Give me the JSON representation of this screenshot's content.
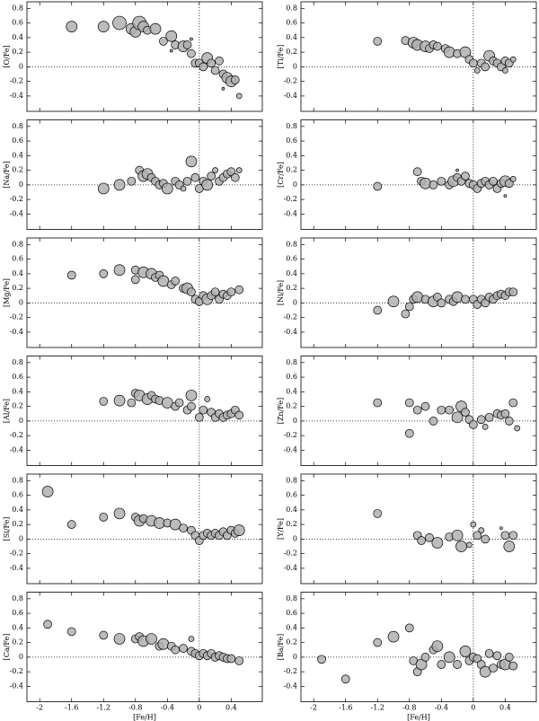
{
  "chart_data": [
    {
      "type": "scatter",
      "ylabel": "[O/Fe]",
      "x": [
        -1.6,
        -1.2,
        -1.0,
        -0.85,
        -0.8,
        -0.75,
        -0.7,
        -0.65,
        -0.55,
        -0.45,
        -0.35,
        -0.3,
        -0.2,
        -0.15,
        -0.1,
        -0.05,
        0,
        0.05,
        0.1,
        0.15,
        0.2,
        0.25,
        0.3,
        0.35,
        0.4,
        0.45,
        0.5,
        -0.1,
        -0.35,
        0.3
      ],
      "values": [
        0.55,
        0.55,
        0.6,
        0.52,
        0.48,
        0.6,
        0.55,
        0.5,
        0.52,
        0.35,
        0.42,
        0.3,
        0.28,
        0.3,
        0.18,
        0.05,
        0.05,
        0,
        0.12,
        0.05,
        -0.05,
        0.08,
        -0.1,
        -0.15,
        -0.2,
        -0.18,
        -0.4,
        0.38,
        0.22,
        -0.3
      ],
      "sizes": [
        4,
        4,
        5,
        4,
        4,
        5,
        4,
        3,
        4,
        3,
        4,
        3,
        4,
        3,
        3,
        3,
        3,
        3,
        4,
        3,
        3,
        3,
        3,
        4,
        4,
        3,
        2,
        1,
        1,
        1
      ],
      "xlim": [
        -2.16,
        0.79
      ],
      "ylim": [
        -0.61,
        0.89
      ],
      "xticks": [
        -2,
        -1.6,
        -1.2,
        -0.8,
        -0.4,
        0,
        0.4
      ],
      "yticks": [
        -0.4,
        -0.2,
        0,
        0.2,
        0.4,
        0.6,
        0.8
      ]
    },
    {
      "type": "scatter",
      "ylabel": "[Ti/Fe]",
      "x": [
        -1.2,
        -0.85,
        -0.75,
        -0.7,
        -0.6,
        -0.55,
        -0.5,
        -0.45,
        -0.35,
        -0.3,
        -0.2,
        -0.1,
        -0.05,
        0,
        0.05,
        0.1,
        0.15,
        0.2,
        0.25,
        0.3,
        0.35,
        0.4,
        0.45,
        0.5,
        0.4
      ],
      "values": [
        0.35,
        0.36,
        0.33,
        0.3,
        0.28,
        0.25,
        0.3,
        0.28,
        0.25,
        0.2,
        0.18,
        0.2,
        0.1,
        0.05,
        -0.05,
        0.05,
        0,
        0.15,
        0.08,
        0.05,
        0,
        0.08,
        0.05,
        0.1,
        -0.05
      ],
      "sizes": [
        3,
        3,
        4,
        4,
        4,
        3,
        3,
        3,
        3,
        4,
        3,
        4,
        3,
        3,
        2,
        3,
        3,
        4,
        3,
        3,
        3,
        3,
        3,
        2,
        2
      ],
      "xlim": [
        -2.16,
        0.79
      ],
      "ylim": [
        -0.61,
        0.89
      ],
      "xticks": [
        -2,
        -1.6,
        -1.2,
        -0.8,
        -0.4,
        0,
        0.4
      ],
      "yticks": [
        -0.4,
        -0.2,
        0,
        0.2,
        0.4,
        0.6,
        0.8
      ]
    },
    {
      "type": "scatter",
      "ylabel": "[Na/Fe]",
      "x": [
        -1.2,
        -1.0,
        -0.85,
        -0.75,
        -0.7,
        -0.65,
        -0.6,
        -0.55,
        -0.5,
        -0.45,
        -0.4,
        -0.3,
        -0.25,
        -0.15,
        -0.1,
        -0.05,
        0,
        0.05,
        0.1,
        0.15,
        0.2,
        0.25,
        0.3,
        0.35,
        0.4,
        0.45,
        0.5,
        -0.2
      ],
      "values": [
        -0.05,
        0,
        0.05,
        0.2,
        0.12,
        0.15,
        0.1,
        0.05,
        0,
        0.02,
        -0.05,
        0.05,
        0,
        0.05,
        0.32,
        0.1,
        -0.05,
        0.05,
        0,
        0.12,
        0.2,
        0.05,
        0.1,
        0.15,
        0.18,
        0.1,
        0.2,
        -0.05
      ],
      "sizes": [
        4,
        4,
        3,
        3,
        4,
        4,
        3,
        3,
        3,
        3,
        4,
        3,
        3,
        3,
        4,
        3,
        3,
        3,
        4,
        3,
        2,
        3,
        3,
        3,
        3,
        3,
        2,
        2
      ],
      "xlim": [
        -2.16,
        0.79
      ],
      "ylim": [
        -0.61,
        0.89
      ],
      "xticks": [
        -2,
        -1.6,
        -1.2,
        -0.8,
        -0.4,
        0,
        0.4
      ],
      "yticks": [
        -0.4,
        -0.2,
        0,
        0.2,
        0.4,
        0.6,
        0.8
      ]
    },
    {
      "type": "scatter",
      "ylabel": "[Cr/Fe]",
      "x": [
        -1.2,
        -0.7,
        -0.65,
        -0.6,
        -0.5,
        -0.4,
        -0.3,
        -0.25,
        -0.2,
        -0.15,
        -0.1,
        -0.05,
        0,
        0.05,
        0.1,
        0.15,
        0.2,
        0.25,
        0.3,
        0.35,
        0.4,
        0.45,
        0.5,
        -0.2,
        0.4
      ],
      "values": [
        -0.02,
        0.18,
        0.05,
        0.02,
        0,
        0.05,
        0,
        0.05,
        0.1,
        0.05,
        0.12,
        0.02,
        0,
        -0.05,
        0.02,
        0.05,
        0,
        0.05,
        -0.05,
        0.02,
        0.05,
        0.02,
        0.08,
        0.2,
        -0.15
      ],
      "sizes": [
        3,
        3,
        3,
        4,
        3,
        3,
        3,
        4,
        3,
        3,
        3,
        3,
        3,
        3,
        3,
        3,
        3,
        3,
        3,
        3,
        4,
        3,
        2,
        1,
        1
      ],
      "xlim": [
        -2.16,
        0.79
      ],
      "ylim": [
        -0.61,
        0.89
      ],
      "xticks": [
        -2,
        -1.6,
        -1.2,
        -0.8,
        -0.4,
        0,
        0.4
      ],
      "yticks": [
        -0.4,
        -0.2,
        0,
        0.2,
        0.4,
        0.6,
        0.8
      ]
    },
    {
      "type": "scatter",
      "ylabel": "[Mg/Fe]",
      "x": [
        -1.6,
        -1.2,
        -1.0,
        -0.8,
        -0.8,
        -0.7,
        -0.6,
        -0.55,
        -0.5,
        -0.45,
        -0.35,
        -0.3,
        -0.2,
        -0.15,
        -0.1,
        -0.05,
        0,
        0.05,
        0.1,
        0.15,
        0.2,
        0.25,
        0.3,
        0.35,
        0.4,
        0.5
      ],
      "values": [
        0.38,
        0.4,
        0.45,
        0.45,
        0.32,
        0.42,
        0.4,
        0.35,
        0.38,
        0.3,
        0.25,
        0.3,
        0.2,
        0.2,
        0.15,
        0.05,
        0.02,
        0.1,
        0.05,
        0.1,
        0.15,
        0.05,
        0.12,
        0.1,
        0.15,
        0.18
      ],
      "sizes": [
        3,
        3,
        4,
        3,
        3,
        4,
        4,
        3,
        3,
        4,
        3,
        3,
        3,
        4,
        3,
        3,
        3,
        3,
        4,
        3,
        3,
        3,
        3,
        3,
        3,
        3
      ],
      "xlim": [
        -2.16,
        0.79
      ],
      "ylim": [
        -0.61,
        0.89
      ],
      "xticks": [
        -2,
        -1.6,
        -1.2,
        -0.8,
        -0.4,
        0,
        0.4
      ],
      "yticks": [
        -0.4,
        -0.2,
        0,
        0.2,
        0.4,
        0.6,
        0.8
      ]
    },
    {
      "type": "scatter",
      "ylabel": "[Ni/Fe]",
      "x": [
        -1.2,
        -1.0,
        -0.85,
        -0.8,
        -0.75,
        -0.7,
        -0.6,
        -0.5,
        -0.45,
        -0.4,
        -0.3,
        -0.25,
        -0.2,
        -0.1,
        0,
        0.05,
        0.1,
        0.15,
        0.2,
        0.25,
        0.3,
        0.35,
        0.4,
        0.45,
        0.5
      ],
      "values": [
        -0.1,
        0.02,
        -0.15,
        -0.05,
        0.05,
        0.08,
        0.05,
        0.02,
        0.08,
        0,
        0.05,
        0.02,
        0.08,
        0.05,
        0.05,
        -0.02,
        0.05,
        0,
        0.08,
        0.05,
        0.1,
        0.12,
        0.1,
        0.15,
        0.15
      ],
      "sizes": [
        3,
        4,
        3,
        3,
        3,
        4,
        3,
        4,
        3,
        3,
        3,
        3,
        4,
        3,
        3,
        3,
        3,
        3,
        3,
        3,
        3,
        3,
        3,
        3,
        3
      ],
      "xlim": [
        -2.16,
        0.79
      ],
      "ylim": [
        -0.61,
        0.89
      ],
      "xticks": [
        -2,
        -1.6,
        -1.2,
        -0.8,
        -0.4,
        0,
        0.4
      ],
      "yticks": [
        -0.4,
        -0.2,
        0,
        0.2,
        0.4,
        0.6,
        0.8
      ]
    },
    {
      "type": "scatter",
      "ylabel": "[Al/Fe]",
      "x": [
        -1.2,
        -1.0,
        -0.85,
        -0.8,
        -0.75,
        -0.65,
        -0.6,
        -0.55,
        -0.5,
        -0.4,
        -0.3,
        -0.25,
        -0.15,
        -0.1,
        -0.1,
        0,
        0.05,
        0.1,
        0.15,
        0.2,
        0.25,
        0.3,
        0.35,
        0.4,
        0.45,
        0.5
      ],
      "values": [
        0.27,
        0.28,
        0.25,
        0.38,
        0.35,
        0.3,
        0.35,
        0.3,
        0.28,
        0.25,
        0.2,
        0.25,
        0.15,
        0.35,
        0.2,
        0.05,
        0.15,
        0.3,
        0.12,
        0.05,
        0.1,
        0.05,
        0.08,
        0.1,
        0.15,
        0.08
      ],
      "sizes": [
        3,
        4,
        3,
        3,
        4,
        4,
        3,
        3,
        3,
        4,
        3,
        3,
        3,
        4,
        3,
        3,
        3,
        2,
        3,
        3,
        3,
        3,
        3,
        3,
        3,
        3
      ],
      "xlim": [
        -2.16,
        0.79
      ],
      "ylim": [
        -0.61,
        0.89
      ],
      "xticks": [
        -2,
        -1.6,
        -1.2,
        -0.8,
        -0.4,
        0,
        0.4
      ],
      "yticks": [
        -0.4,
        -0.2,
        0,
        0.2,
        0.4,
        0.6,
        0.8
      ]
    },
    {
      "type": "scatter",
      "ylabel": "[Zn/Fe]",
      "x": [
        -1.2,
        -0.8,
        -0.8,
        -0.7,
        -0.6,
        -0.5,
        -0.4,
        -0.3,
        -0.2,
        -0.15,
        -0.1,
        -0.05,
        0,
        0.1,
        0.15,
        0.2,
        0.3,
        0.35,
        0.4,
        0.45,
        0.5,
        0.55
      ],
      "values": [
        0.25,
        0.25,
        -0.17,
        0.15,
        0.2,
        0,
        0.15,
        0.15,
        0.05,
        0.2,
        0.12,
        0.02,
        -0.05,
        0.02,
        -0.08,
        0.05,
        0.1,
        0.08,
        0.1,
        0,
        0.25,
        -0.1
      ],
      "sizes": [
        3,
        3,
        3,
        3,
        3,
        3,
        3,
        3,
        4,
        4,
        3,
        3,
        3,
        3,
        2,
        3,
        3,
        3,
        3,
        3,
        3,
        2
      ],
      "xlim": [
        -2.16,
        0.79
      ],
      "ylim": [
        -0.61,
        0.89
      ],
      "xticks": [
        -2,
        -1.6,
        -1.2,
        -0.8,
        -0.4,
        0,
        0.4
      ],
      "yticks": [
        -0.4,
        -0.2,
        0,
        0.2,
        0.4,
        0.6,
        0.8
      ]
    },
    {
      "type": "scatter",
      "ylabel": "[Si/Fe]",
      "x": [
        -1.9,
        -1.6,
        -1.2,
        -1.0,
        -0.8,
        -0.75,
        -0.7,
        -0.6,
        -0.5,
        -0.4,
        -0.3,
        -0.2,
        -0.1,
        -0.05,
        0,
        0.05,
        0.1,
        0.15,
        0.2,
        0.25,
        0.3,
        0.35,
        0.4,
        0.45,
        0.5
      ],
      "values": [
        0.65,
        0.2,
        0.3,
        0.35,
        0.3,
        0.25,
        0.28,
        0.25,
        0.22,
        0.22,
        0.2,
        0.15,
        0.12,
        0.05,
        -0.02,
        0.05,
        0.08,
        0.05,
        0.08,
        0.05,
        0.1,
        0.05,
        0.12,
        0.08,
        0.12
      ],
      "sizes": [
        4,
        3,
        3,
        4,
        3,
        4,
        3,
        4,
        4,
        3,
        4,
        3,
        3,
        3,
        3,
        3,
        3,
        3,
        3,
        3,
        3,
        3,
        3,
        3,
        4
      ],
      "xlim": [
        -2.16,
        0.79
      ],
      "ylim": [
        -0.61,
        0.89
      ],
      "xticks": [
        -2,
        -1.6,
        -1.2,
        -0.8,
        -0.4,
        0,
        0.4
      ],
      "yticks": [
        -0.4,
        -0.2,
        0,
        0.2,
        0.4,
        0.6,
        0.8
      ]
    },
    {
      "type": "scatter",
      "ylabel": "[Y/Fe]",
      "x": [
        -1.2,
        -0.7,
        -0.65,
        -0.55,
        -0.45,
        -0.3,
        -0.2,
        -0.15,
        -0.05,
        0,
        0.05,
        0.1,
        0.15,
        0.35,
        0.4,
        0.45,
        0.5
      ],
      "values": [
        0.35,
        0.05,
        -0.02,
        0.02,
        -0.05,
        0.03,
        0.05,
        -0.1,
        -0.08,
        0.2,
        0.05,
        0.12,
        0,
        0.15,
        0.05,
        -0.1,
        0.05
      ],
      "sizes": [
        3,
        3,
        3,
        3,
        4,
        3,
        4,
        4,
        2,
        2,
        3,
        2,
        3,
        1,
        3,
        4,
        3
      ],
      "xlim": [
        -2.16,
        0.79
      ],
      "ylim": [
        -0.61,
        0.89
      ],
      "xticks": [
        -2,
        -1.6,
        -1.2,
        -0.8,
        -0.4,
        0,
        0.4
      ],
      "yticks": [
        -0.4,
        -0.2,
        0,
        0.2,
        0.4,
        0.6,
        0.8
      ]
    },
    {
      "type": "scatter",
      "ylabel": "[Ca/Fe]",
      "xlabel": "[Fe/H]",
      "x": [
        -1.9,
        -1.6,
        -1.2,
        -1.0,
        -0.8,
        -0.75,
        -0.7,
        -0.6,
        -0.5,
        -0.45,
        -0.35,
        -0.3,
        -0.2,
        -0.1,
        -0.05,
        0,
        0.05,
        0.1,
        0.15,
        0.2,
        0.25,
        0.3,
        0.35,
        0.4,
        0.5,
        -0.1
      ],
      "values": [
        0.45,
        0.35,
        0.3,
        0.25,
        0.25,
        0.28,
        0.22,
        0.25,
        0.15,
        0.18,
        0.15,
        0.1,
        0.12,
        0.08,
        0.05,
        0.02,
        0.05,
        0.02,
        0.05,
        0,
        0.02,
        0,
        -0.02,
        -0.02,
        -0.05,
        0.25
      ],
      "sizes": [
        3,
        3,
        3,
        4,
        3,
        3,
        4,
        4,
        3,
        4,
        3,
        3,
        3,
        3,
        3,
        3,
        3,
        3,
        3,
        3,
        3,
        3,
        3,
        3,
        3,
        2
      ],
      "xlim": [
        -2.16,
        0.79
      ],
      "ylim": [
        -0.61,
        0.89
      ],
      "xticks": [
        -2,
        -1.6,
        -1.2,
        -0.8,
        -0.4,
        0,
        0.4
      ],
      "yticks": [
        -0.4,
        -0.2,
        0,
        0.2,
        0.4,
        0.6,
        0.8
      ]
    },
    {
      "type": "scatter",
      "ylabel": "[Ba/Fe]",
      "xlabel": "[Fe/H]",
      "x": [
        -1.9,
        -1.6,
        -1.2,
        -1.0,
        -0.8,
        -0.75,
        -0.7,
        -0.65,
        -0.6,
        -0.5,
        -0.45,
        -0.4,
        -0.3,
        -0.2,
        -0.1,
        -0.05,
        0,
        0.05,
        0.1,
        0.15,
        0.2,
        0.25,
        0.3,
        0.35,
        0.4,
        0.45,
        0.5
      ],
      "values": [
        -0.03,
        -0.3,
        0.2,
        0.28,
        0.4,
        -0.05,
        -0.2,
        -0.1,
        0,
        0.1,
        0.15,
        -0.1,
        0,
        -0.1,
        0.08,
        -0.05,
        0,
        -0.02,
        -0.1,
        -0.2,
        0.05,
        -0.15,
        0.02,
        -0.1,
        -0.1,
        0,
        -0.12
      ],
      "sizes": [
        3,
        3,
        3,
        4,
        3,
        3,
        3,
        4,
        3,
        3,
        4,
        3,
        4,
        3,
        4,
        3,
        3,
        3,
        3,
        4,
        3,
        3,
        3,
        3,
        4,
        3,
        3
      ],
      "xlim": [
        -2.16,
        0.79
      ],
      "ylim": [
        -0.61,
        0.89
      ],
      "xticks": [
        -2,
        -1.6,
        -1.2,
        -0.8,
        -0.4,
        0,
        0.4
      ],
      "yticks": [
        -0.4,
        -0.2,
        0,
        0.2,
        0.4,
        0.6,
        0.8
      ]
    }
  ]
}
